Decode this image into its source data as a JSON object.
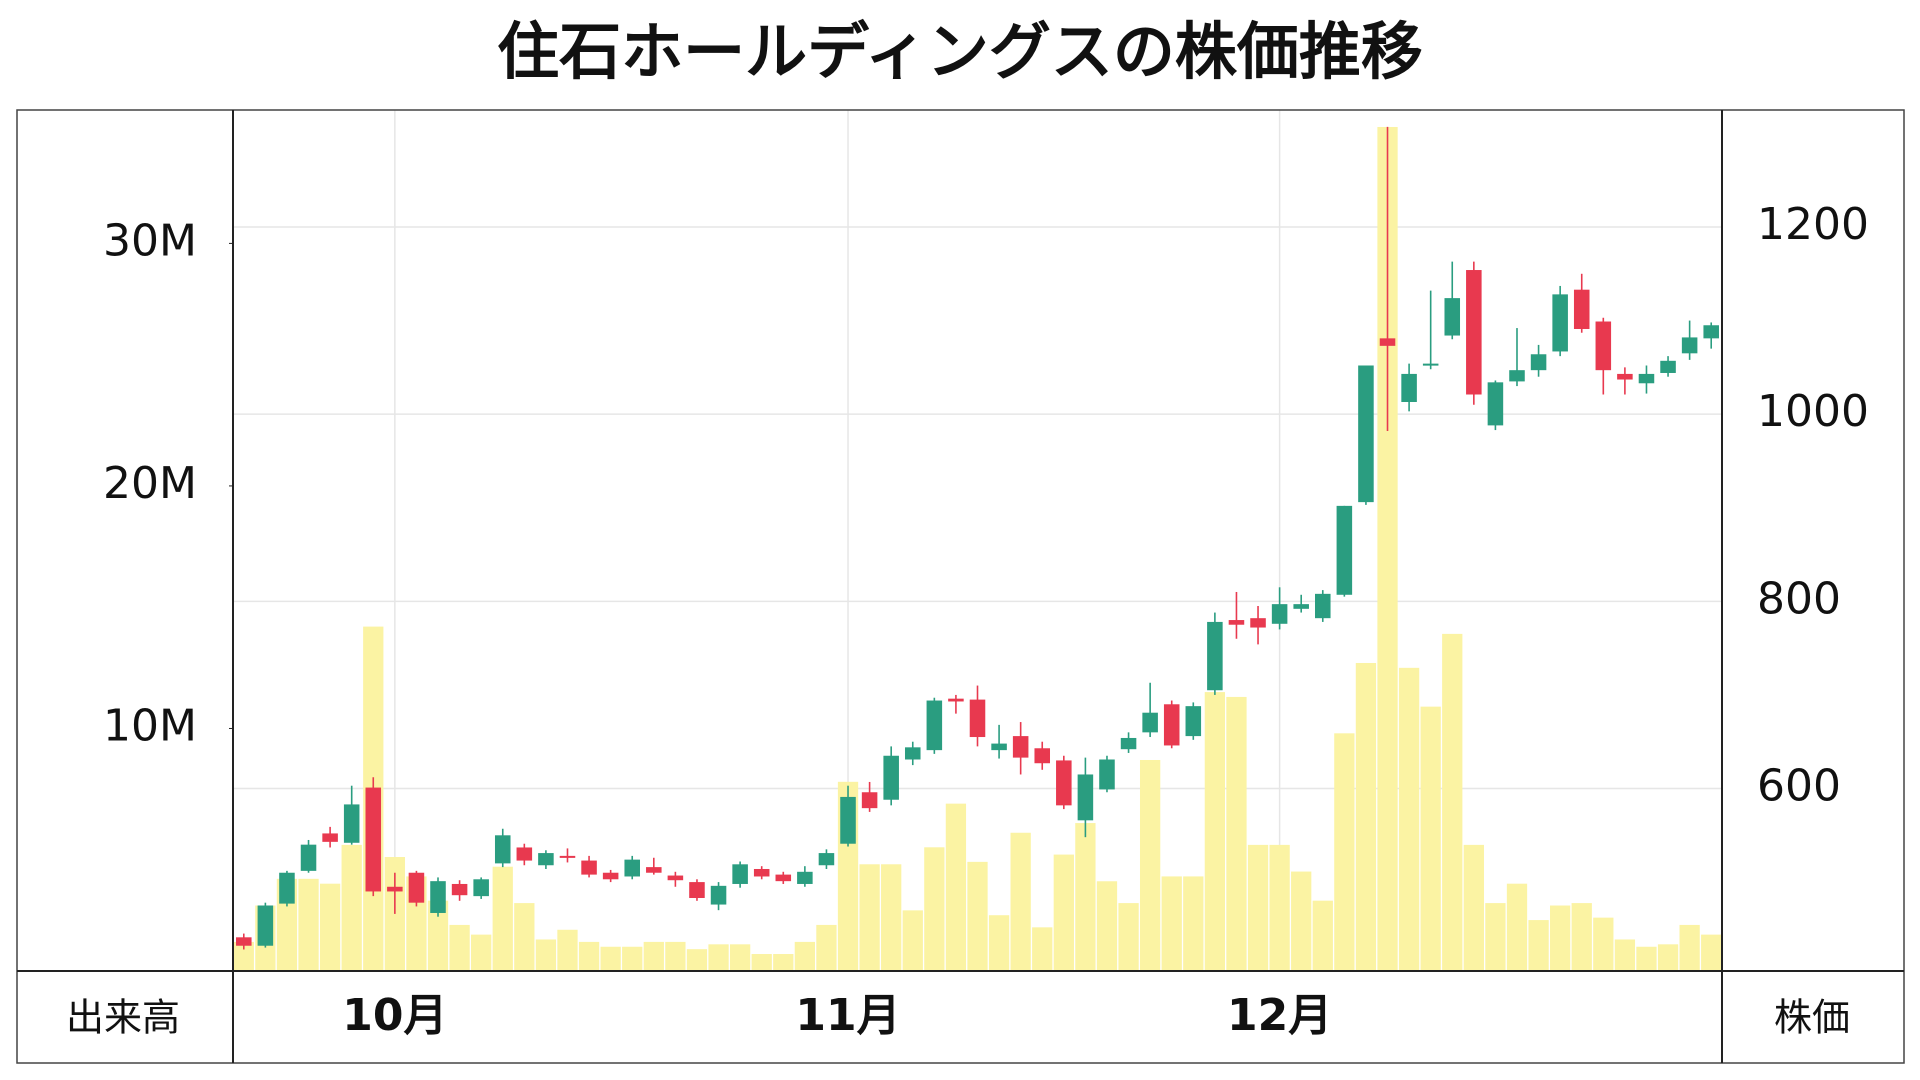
{
  "chart_data": {
    "type": "candlestick",
    "title": "住石ホールディングスの株価推移",
    "y_label": "出来高",
    "y2_label": "株価",
    "categories": [
      null,
      null,
      null,
      null,
      null,
      null,
      null,
      "10月",
      null,
      null,
      null,
      null,
      null,
      null,
      null,
      null,
      null,
      null,
      null,
      null,
      null,
      null,
      null,
      null,
      null,
      null,
      null,
      null,
      "11月",
      null,
      null,
      null,
      null,
      null,
      null,
      null,
      null,
      null,
      null,
      null,
      null,
      null,
      null,
      null,
      null,
      null,
      null,
      null,
      "12月",
      null,
      null,
      null,
      null,
      null,
      null,
      null,
      null,
      null,
      null,
      null,
      null,
      null,
      null,
      null,
      null,
      null,
      null,
      null,
      null
    ],
    "open": [
      441,
      432,
      477,
      512,
      552,
      542,
      601,
      495,
      510,
      467,
      498,
      485,
      520,
      537,
      518,
      528,
      523,
      510,
      506,
      516,
      507,
      500,
      476,
      498,
      514,
      508,
      498,
      518,
      541,
      596,
      588,
      631,
      641,
      696,
      695,
      641,
      656,
      643,
      630,
      566,
      599,
      642,
      660,
      690,
      656,
      705,
      780,
      782,
      776,
      792,
      782,
      807,
      906,
      1081,
      1013,
      1052,
      1084,
      1154,
      988,
      1035,
      1047,
      1067,
      1133,
      1099,
      1043,
      1033,
      1044,
      1065,
      1081
    ],
    "high": [
      445,
      478,
      512,
      545,
      559,
      603,
      612,
      510,
      512,
      505,
      502,
      505,
      557,
      541,
      534,
      536,
      528,
      513,
      528,
      526,
      511,
      503,
      500,
      522,
      517,
      511,
      517,
      535,
      603,
      607,
      645,
      650,
      697,
      700,
      710,
      668,
      671,
      650,
      635,
      633,
      635,
      660,
      713,
      694,
      692,
      788,
      810,
      795,
      815,
      807,
      812,
      902,
      1052,
      1307,
      1054,
      1132,
      1163,
      1163,
      1036,
      1092,
      1074,
      1137,
      1150,
      1103,
      1050,
      1052,
      1062,
      1100,
      1098
    ],
    "low": [
      428,
      430,
      474,
      510,
      537,
      540,
      485,
      466,
      474,
      463,
      480,
      482,
      516,
      518,
      514,
      521,
      505,
      500,
      503,
      508,
      495,
      480,
      470,
      494,
      503,
      498,
      495,
      514,
      538,
      575,
      582,
      625,
      637,
      680,
      645,
      632,
      615,
      620,
      578,
      548,
      596,
      638,
      655,
      643,
      652,
      700,
      760,
      754,
      770,
      788,
      778,
      805,
      903,
      982,
      1003,
      1048,
      1080,
      1010,
      983,
      1030,
      1040,
      1062,
      1087,
      1021,
      1021,
      1022,
      1040,
      1058,
      1070
    ],
    "close": [
      432,
      475,
      510,
      540,
      543,
      583,
      490,
      490,
      478,
      501,
      486,
      503,
      550,
      523,
      531,
      527,
      508,
      503,
      524,
      510,
      502,
      483,
      496,
      519,
      506,
      501,
      511,
      531,
      591,
      579,
      635,
      644,
      694,
      693,
      655,
      648,
      633,
      627,
      582,
      615,
      631,
      654,
      681,
      646,
      688,
      778,
      775,
      772,
      797,
      797,
      808,
      902,
      1052,
      1073,
      1043,
      1054,
      1124,
      1021,
      1034,
      1047,
      1064,
      1128,
      1091,
      1047,
      1037,
      1043,
      1057,
      1082,
      1095
    ],
    "volume": [
      1200000,
      2700000,
      3800000,
      3800000,
      3600000,
      5200000,
      14200000,
      4700000,
      3900000,
      2900000,
      1900000,
      1500000,
      4300000,
      2800000,
      1300000,
      1700000,
      1200000,
      1000000,
      1000000,
      1200000,
      1200000,
      900000,
      1100000,
      1100000,
      700000,
      700000,
      1200000,
      1900000,
      7800000,
      4400000,
      4400000,
      2500000,
      5100000,
      6900000,
      4500000,
      2300000,
      5700000,
      1800000,
      4800000,
      6100000,
      3700000,
      2800000,
      8700000,
      3900000,
      3900000,
      11500000,
      11300000,
      5200000,
      5200000,
      4100000,
      2900000,
      9800000,
      12700000,
      34800000,
      12500000,
      10900000,
      13900000,
      5200000,
      2800000,
      3600000,
      2100000,
      2700000,
      2800000,
      2200000,
      1300000,
      1000000,
      1100000,
      1900000,
      1500000
    ],
    "up_color": "#2a9d80",
    "down_color": "#e8394f",
    "volume_color": "#fbf3a3",
    "ylim": [
      0,
      35500000
    ],
    "yticks": [
      {
        "value": 10000000,
        "label": "10M"
      },
      {
        "value": 20000000,
        "label": "20M"
      },
      {
        "value": 30000000,
        "label": "30M"
      }
    ],
    "y2lim": [
      405,
      1325
    ],
    "y2ticks": [
      600,
      800,
      1000,
      1200
    ],
    "grid": true
  }
}
